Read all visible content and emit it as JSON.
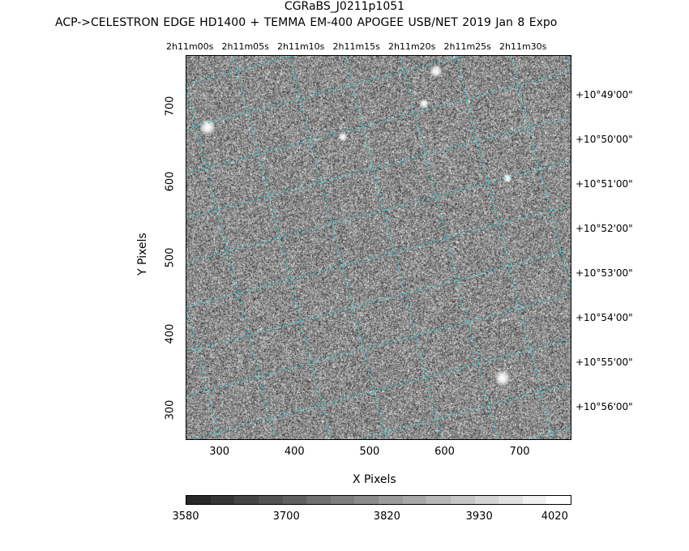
{
  "chart_data": {
    "type": "heatmap",
    "title": "CGRaBS_J0211p1051",
    "subtitle": "ACP->CELESTRON EDGE HD1400 + TEMMA EM-400 APOGEE USB/NET   2019 Jan  8    Expo",
    "xlabel": "X Pixels",
    "ylabel": "Y Pixels",
    "xlim": [
      255,
      769
    ],
    "ylim": [
      260,
      767
    ],
    "x_ticks": [
      "300",
      "400",
      "500",
      "600",
      "700"
    ],
    "y_ticks": [
      "300",
      "400",
      "500",
      "600",
      "700"
    ],
    "ra_ticks": [
      "2h11m00s",
      "2h11m05s",
      "2h11m10s",
      "2h11m15s",
      "2h11m20s",
      "2h11m25s",
      "2h11m30s"
    ],
    "dec_ticks": [
      "+10°49'00\"",
      "+10°50'00\"",
      "+10°51'00\"",
      "+10°52'00\"",
      "+10°53'00\"",
      "+10°54'00\"",
      "+10°55'00\"",
      "+10°56'00\""
    ],
    "colorbar": {
      "labels": [
        "3580",
        "3700",
        "3820",
        "3930",
        "4020"
      ],
      "range": [
        3580,
        4040
      ],
      "colormap": "grayscale"
    },
    "grid_color": "#00e5e5",
    "grid": true
  }
}
